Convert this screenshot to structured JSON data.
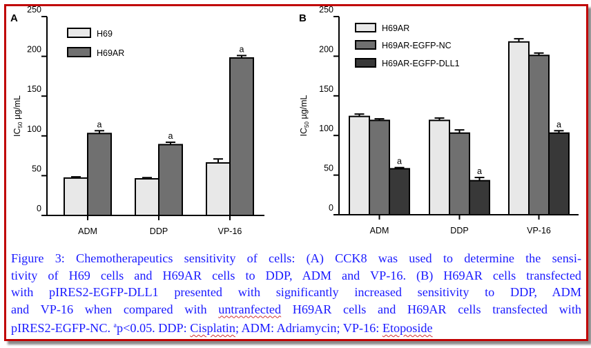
{
  "chart_data": [
    {
      "type": "bar",
      "panel": "A",
      "ylabel": "IC50 µg/mL",
      "ylabel_main": "IC",
      "ylabel_sub": "50",
      "ylabel_unit": " µg/mL",
      "ylim": [
        0,
        250
      ],
      "yticks": [
        "0",
        "50",
        "100",
        "150",
        "200",
        "250"
      ],
      "categories": [
        "ADM",
        "DDP",
        "VP-16"
      ],
      "legend_position": "top-left",
      "series": [
        {
          "name": "H69",
          "color": "#e8e8e8",
          "values": [
            47,
            46,
            66
          ],
          "errors": [
            1.5,
            1.5,
            5
          ],
          "annotations": [
            "",
            "",
            ""
          ]
        },
        {
          "name": "H69AR",
          "color": "#707070",
          "values": [
            103,
            89,
            198
          ],
          "errors": [
            3.5,
            3,
            3
          ],
          "annotations": [
            "a",
            "a",
            "a"
          ]
        }
      ]
    },
    {
      "type": "bar",
      "panel": "B",
      "ylabel": "IC50 µg/mL",
      "ylabel_main": "IC",
      "ylabel_sub": "50",
      "ylabel_unit": " µg/mL",
      "ylim": [
        0,
        250
      ],
      "yticks": [
        "0",
        "50",
        "100",
        "150",
        "200",
        "250"
      ],
      "categories": [
        "ADM",
        "DDP",
        "VP-16"
      ],
      "legend_position": "top-left",
      "series": [
        {
          "name": "H69AR",
          "color": "#e8e8e8",
          "values": [
            124,
            119,
            218
          ],
          "errors": [
            3,
            3,
            4
          ],
          "annotations": [
            "",
            "",
            ""
          ]
        },
        {
          "name": "H69AR-EGFP-NC",
          "color": "#707070",
          "values": [
            119,
            103,
            201
          ],
          "errors": [
            2,
            4,
            3
          ],
          "annotations": [
            "",
            "",
            ""
          ]
        },
        {
          "name": "H69AR-EGFP-DLL1",
          "color": "#383838",
          "values": [
            58,
            43,
            103
          ],
          "errors": [
            1.5,
            4,
            3
          ],
          "annotations": [
            "a",
            "a",
            "a"
          ]
        }
      ]
    }
  ],
  "caption": {
    "lines": [
      "Figure 3: Chemotherapeutics sensitivity of cells: (A) CCK8 was used to determine the sensi-",
      "tivity of H69 cells and H69AR cells to DDP, ADM and VP-16. (B) H69AR cells transfected",
      "with pIRES2-EGFP-DLL1 presented with significantly increased sensitivity to DDP, ADM"
    ],
    "line4_pre": "and VP-16 when compared with ",
    "line4_word": "untranfected",
    "line4_post": " H69AR cells and H69AR cells transfected with",
    "line5_a": "pIRES2-EGFP-NC.  ",
    "line5_sup": "a",
    "line5_b": "p<0.05. DDP: ",
    "line5_cisplatin": "Cisplatin",
    "line5_c": "; ADM: Adriamycin; VP-16: ",
    "line5_etoposide": "Etoposide"
  },
  "colors": {
    "frame": "#c00000",
    "caption": "#1a1aff"
  }
}
